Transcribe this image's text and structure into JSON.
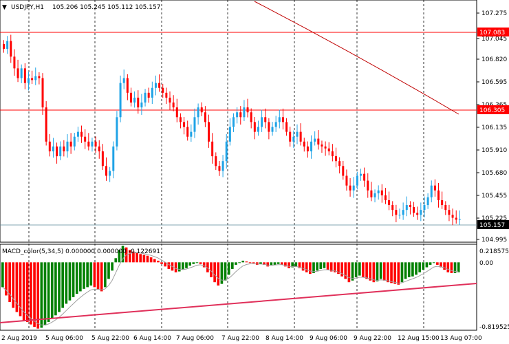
{
  "header": {
    "symbol": "USDJPY,H1",
    "ohlc": "105.206 105.245 105.112 105.157"
  },
  "macd": {
    "label": "MACD_color(5,34,5) 0.000000 0.000000 -0.122691"
  },
  "colors": {
    "bull": "#1fa3e6",
    "bear": "#ff0000",
    "macd_up": "#008000",
    "macd_down": "#ff0000",
    "signal": "#a0a0a0",
    "hline": "#ff0000",
    "ma": "#c00000",
    "trend": "#e0305a"
  },
  "price_axis": {
    "ticks": [
      "107.275",
      "107.045",
      "106.820",
      "106.595",
      "106.365",
      "106.135",
      "105.910",
      "105.680",
      "105.455",
      "105.225",
      "104.995"
    ],
    "levels": [
      "107.083",
      "106.305"
    ],
    "current": "105.157"
  },
  "macd_axis": {
    "ticks": [
      "0.218575",
      "0.00",
      "-0.819525"
    ]
  },
  "time_axis": {
    "labels": [
      "2 Aug 2019",
      "5 Aug 06:00",
      "5 Aug 22:00",
      "6 Aug 14:00",
      "7 Aug 06:00",
      "7 Aug 22:00",
      "8 Aug 14:00",
      "9 Aug 06:00",
      "9 Aug 22:00",
      "12 Aug 15:00",
      "13 Aug 07:00"
    ]
  },
  "chart_data": {
    "type": "candlestick",
    "price_range": [
      104.92,
      107.4
    ],
    "macd_range": [
      -0.82,
      0.218575
    ],
    "closes": [
      106.9,
      106.98,
      106.82,
      106.7,
      106.6,
      106.7,
      106.55,
      106.6,
      106.58,
      106.62,
      106.6,
      106.3,
      105.95,
      105.85,
      105.9,
      105.8,
      105.9,
      105.85,
      105.95,
      105.9,
      106.0,
      106.05,
      106.0,
      105.95,
      105.9,
      105.95,
      105.9,
      105.85,
      105.7,
      105.6,
      105.65,
      105.9,
      106.2,
      106.55,
      106.6,
      106.45,
      106.35,
      106.4,
      106.3,
      106.35,
      106.45,
      106.4,
      106.5,
      106.55,
      106.5,
      106.45,
      106.4,
      106.35,
      106.3,
      106.2,
      106.15,
      106.1,
      106.0,
      106.05,
      106.2,
      106.3,
      106.25,
      106.15,
      105.95,
      105.8,
      105.7,
      105.65,
      105.75,
      105.95,
      106.1,
      106.2,
      106.25,
      106.2,
      106.3,
      106.25,
      106.15,
      106.05,
      106.1,
      106.2,
      106.15,
      106.05,
      106.1,
      106.15,
      106.2,
      106.15,
      106.05,
      105.95,
      106.0,
      106.05,
      105.95,
      105.9,
      105.85,
      105.95,
      105.98,
      105.92,
      105.9,
      105.88,
      105.85,
      105.8,
      105.75,
      105.7,
      105.6,
      105.5,
      105.45,
      105.5,
      105.6,
      105.62,
      105.55,
      105.45,
      105.38,
      105.42,
      105.45,
      105.4,
      105.35,
      105.3,
      105.25,
      105.2,
      105.2,
      105.25,
      105.3,
      105.28,
      105.22,
      105.2,
      105.25,
      105.3,
      105.38,
      105.5,
      105.45,
      105.35,
      105.3,
      105.25,
      105.2,
      105.17,
      105.15,
      105.157
    ],
    "macd_hist": [
      -0.3,
      -0.4,
      -0.48,
      -0.55,
      -0.6,
      -0.65,
      -0.7,
      -0.72,
      -0.75,
      -0.78,
      -0.8,
      -0.79,
      -0.76,
      -0.72,
      -0.68,
      -0.64,
      -0.6,
      -0.55,
      -0.5,
      -0.46,
      -0.42,
      -0.38,
      -0.35,
      -0.32,
      -0.3,
      -0.28,
      -0.3,
      -0.33,
      -0.35,
      -0.3,
      -0.2,
      -0.1,
      0.05,
      0.15,
      0.2,
      0.18,
      0.15,
      0.13,
      0.12,
      0.1,
      0.09,
      0.08,
      0.06,
      0.04,
      0.02,
      -0.02,
      -0.05,
      -0.08,
      -0.1,
      -0.12,
      -0.11,
      -0.09,
      -0.07,
      -0.04,
      -0.02,
      0.0,
      -0.02,
      -0.06,
      -0.12,
      -0.18,
      -0.24,
      -0.28,
      -0.26,
      -0.22,
      -0.15,
      -0.08,
      -0.03,
      0.0,
      0.02,
      0.01,
      0.0,
      -0.01,
      -0.03,
      -0.02,
      -0.03,
      -0.05,
      -0.04,
      -0.03,
      -0.02,
      -0.03,
      -0.05,
      -0.07,
      -0.06,
      -0.05,
      -0.07,
      -0.1,
      -0.12,
      -0.14,
      -0.13,
      -0.1,
      -0.08,
      -0.07,
      -0.09,
      -0.11,
      -0.12,
      -0.14,
      -0.17,
      -0.2,
      -0.24,
      -0.22,
      -0.18,
      -0.16,
      -0.18,
      -0.2,
      -0.22,
      -0.24,
      -0.23,
      -0.2,
      -0.22,
      -0.24,
      -0.25,
      -0.26,
      -0.27,
      -0.24,
      -0.2,
      -0.18,
      -0.17,
      -0.15,
      -0.12,
      -0.09,
      -0.06,
      -0.03,
      0.0,
      -0.03,
      -0.06,
      -0.09,
      -0.12,
      -0.13,
      -0.13,
      -0.12
    ]
  }
}
